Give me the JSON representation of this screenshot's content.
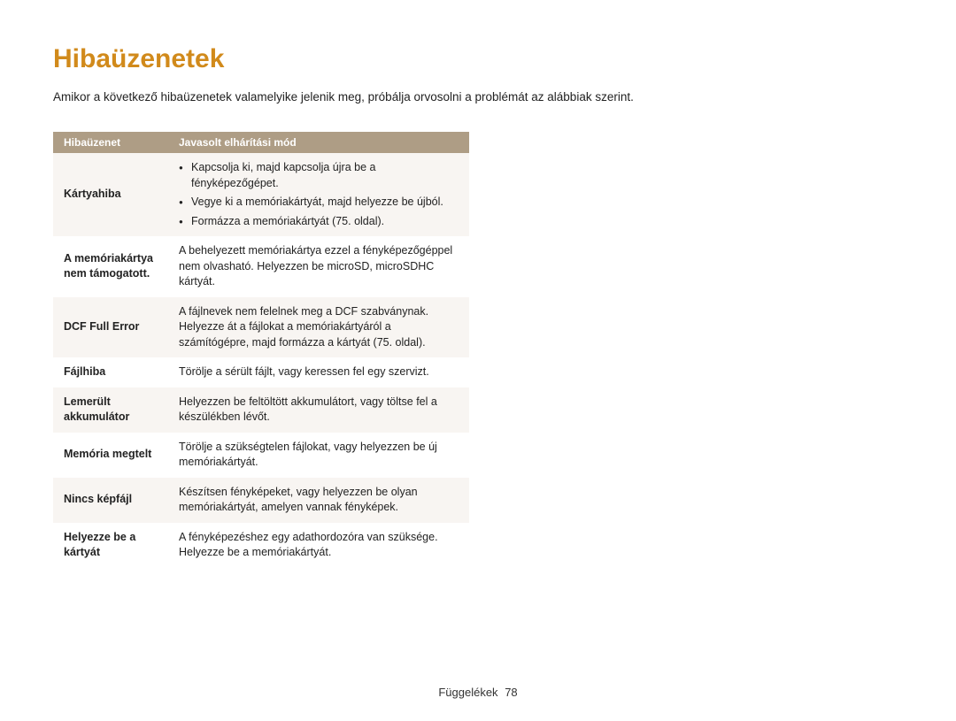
{
  "title": "Hibaüzenetek",
  "title_color": "#d18a1b",
  "intro": "Amikor a következő hibaüzenetek valamelyike jelenik meg, próbálja orvosolni a problémát az alábbiak szerint.",
  "table": {
    "header_bg": "#ae9d85",
    "header_text_color": "#ffffff",
    "alt_row_bg": "#f8f5f2",
    "columns": [
      "Hibaüzenet",
      "Javasolt elhárítási mód"
    ],
    "rows": [
      {
        "label": "Kártyahiba",
        "type": "list",
        "items": [
          "Kapcsolja ki, majd kapcsolja újra be a fényképezőgépet.",
          "Vegye ki a memóriakártyát, majd helyezze be újból.",
          "Formázza a memóriakártyát (75. oldal)."
        ],
        "alt": true
      },
      {
        "label": "A memóriakártya nem támogatott.",
        "type": "text",
        "text": "A behelyezett memóriakártya ezzel a fényképezőgéppel nem olvasható. Helyezzen be microSD, microSDHC kártyát.",
        "alt": false
      },
      {
        "label": "DCF Full Error",
        "type": "text",
        "text": "A fájlnevek nem felelnek meg a DCF szabványnak. Helyezze át a fájlokat a memóriakártyáról a számítógépre, majd formázza a kártyát (75. oldal).",
        "alt": true
      },
      {
        "label": "Fájlhiba",
        "type": "text",
        "text": "Törölje a sérült fájlt, vagy keressen fel egy szervizt.",
        "alt": false
      },
      {
        "label": "Lemerült akkumulátor",
        "type": "text",
        "text": "Helyezzen be feltöltött akkumulátort, vagy töltse fel a készülékben lévőt.",
        "alt": true
      },
      {
        "label": "Memória megtelt",
        "type": "text",
        "text": "Törölje a szükségtelen fájlokat, vagy helyezzen be új memóriakártyát.",
        "alt": false
      },
      {
        "label": "Nincs képfájl",
        "type": "text",
        "text": "Készítsen fényképeket, vagy helyezzen be olyan memóriakártyát, amelyen vannak fényképek.",
        "alt": true
      },
      {
        "label": "Helyezze be a kártyát",
        "type": "text",
        "text": "A fényképezéshez egy adathordozóra van szüksége. Helyezze be a memóriakártyát.",
        "alt": false
      }
    ]
  },
  "footer": {
    "section": "Függelékek",
    "page": "78"
  }
}
